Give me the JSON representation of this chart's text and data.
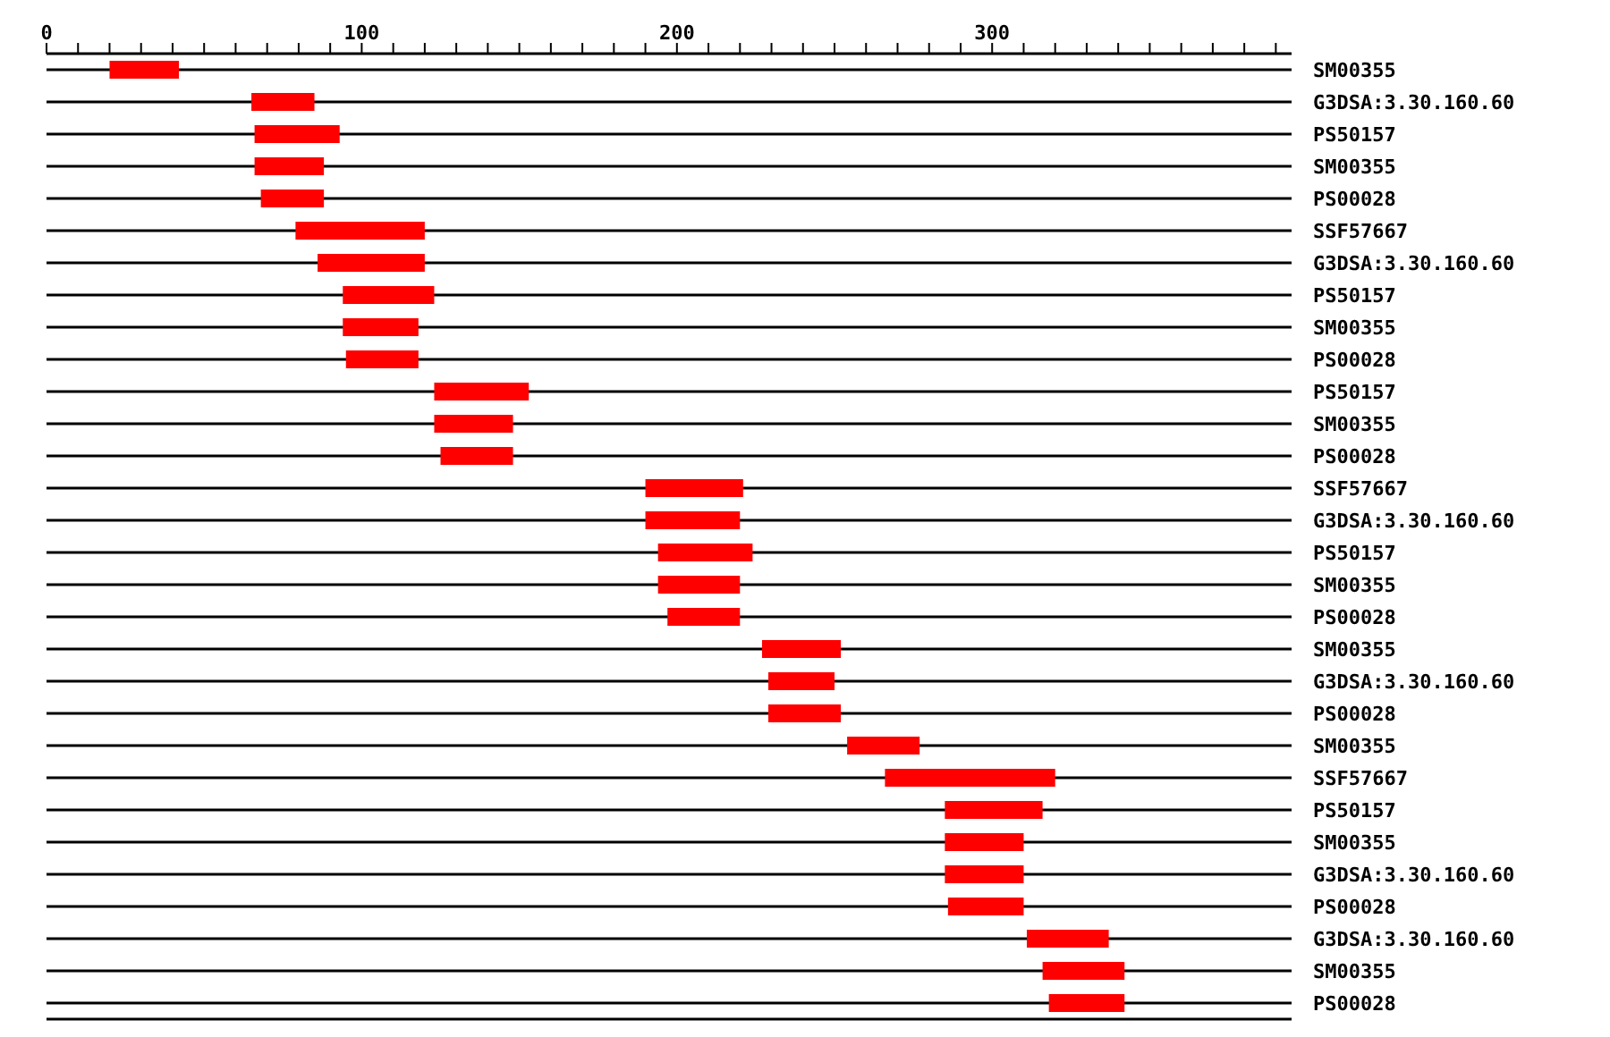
{
  "chart_data": {
    "type": "bar",
    "orientation": "horizontal",
    "grid": "y",
    "legend": false,
    "categories": [
      "SM00355",
      "G3DSA:3.30.160.60",
      "PS50157",
      "SM00355",
      "PS00028",
      "SSF57667",
      "G3DSA:3.30.160.60",
      "PS50157",
      "SM00355",
      "PS00028",
      "PS50157",
      "SM00355",
      "PS00028",
      "SSF57667",
      "G3DSA:3.30.160.60",
      "PS50157",
      "SM00355",
      "PS00028",
      "SM00355",
      "G3DSA:3.30.160.60",
      "PS00028",
      "SM00355",
      "SSF57667",
      "PS50157",
      "SM00355",
      "G3DSA:3.30.160.60",
      "PS00028",
      "G3DSA:3.30.160.60",
      "SM00355",
      "PS00028"
    ],
    "base": [
      20,
      65,
      66,
      66,
      68,
      79,
      86,
      94,
      94,
      95,
      123,
      123,
      125,
      190,
      190,
      194,
      194,
      197,
      227,
      229,
      229,
      254,
      266,
      285,
      285,
      285,
      286,
      311,
      316,
      318
    ],
    "values": [
      22,
      20,
      27,
      22,
      20,
      41,
      34,
      29,
      24,
      23,
      30,
      25,
      23,
      31,
      30,
      30,
      26,
      23,
      25,
      21,
      23,
      23,
      54,
      31,
      25,
      25,
      24,
      26,
      26,
      24
    ],
    "color": "#ff0000",
    "xlim": [
      0,
      395
    ],
    "xticks": [
      0,
      {
        "value": 10,
        "label": null
      },
      {
        "value": 20,
        "label": null
      },
      {
        "value": 30,
        "label": null
      },
      {
        "value": 40,
        "label": null
      },
      {
        "value": 50,
        "label": null
      },
      {
        "value": 60,
        "label": null
      },
      {
        "value": 70,
        "label": null
      },
      {
        "value": 80,
        "label": null
      },
      {
        "value": 90,
        "label": null
      },
      100,
      {
        "value": 110,
        "label": null
      },
      {
        "value": 120,
        "label": null
      },
      {
        "value": 130,
        "label": null
      },
      {
        "value": 140,
        "label": null
      },
      {
        "value": 150,
        "label": null
      },
      {
        "value": 160,
        "label": null
      },
      {
        "value": 170,
        "label": null
      },
      {
        "value": 180,
        "label": null
      },
      {
        "value": 190,
        "label": null
      },
      200,
      {
        "value": 210,
        "label": null
      },
      {
        "value": 220,
        "label": null
      },
      {
        "value": 230,
        "label": null
      },
      {
        "value": 240,
        "label": null
      },
      {
        "value": 250,
        "label": null
      },
      {
        "value": 260,
        "label": null
      },
      {
        "value": 270,
        "label": null
      },
      {
        "value": 280,
        "label": null
      },
      {
        "value": 290,
        "label": null
      },
      300,
      {
        "value": 310,
        "label": null
      },
      {
        "value": 320,
        "label": null
      },
      {
        "value": 330,
        "label": null
      },
      {
        "value": 340,
        "label": null
      },
      {
        "value": 350,
        "label": null
      },
      {
        "value": 360,
        "label": null
      },
      {
        "value": 370,
        "label": null
      },
      {
        "value": 380,
        "label": null
      },
      {
        "value": 390,
        "label": null
      }
    ]
  }
}
